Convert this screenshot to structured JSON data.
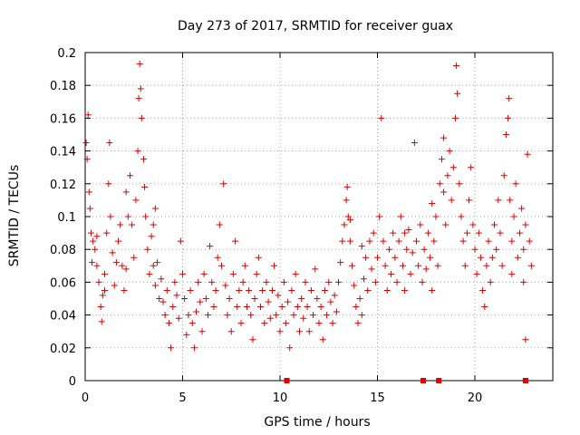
{
  "chart_data": {
    "type": "scatter",
    "title": "Day 273 of 2017, SRMTID for receiver guax",
    "xlabel": "GPS time / hours",
    "ylabel": "SRMTID / TECUs",
    "xlim": [
      0,
      24
    ],
    "ylim": [
      0,
      0.2
    ],
    "xticks": [
      0,
      5,
      10,
      15,
      20
    ],
    "xtick_labels": [
      "0",
      "5",
      "10",
      "15",
      "20"
    ],
    "yticks": [
      0,
      0.02,
      0.04,
      0.06,
      0.08,
      0.1,
      0.12,
      0.14,
      0.16,
      0.18,
      0.2
    ],
    "ytick_labels": [
      "0",
      "0.02",
      "0.04",
      "0.06",
      "0.08",
      "0.1",
      "0.12",
      "0.14",
      "0.16",
      "0.18",
      "0.2"
    ],
    "grid": true,
    "marker": "+",
    "color": "#dd0000",
    "series": [
      {
        "name": "SRMTID",
        "points": [
          [
            0.05,
            0.145
          ],
          [
            0.1,
            0.135
          ],
          [
            0.15,
            0.162
          ],
          [
            0.2,
            0.115
          ],
          [
            0.25,
            0.105
          ],
          [
            0.3,
            0.09
          ],
          [
            0.35,
            0.072
          ],
          [
            0.4,
            0.085
          ],
          [
            0.5,
            0.08
          ],
          [
            0.6,
            0.07
          ],
          [
            0.7,
            0.06
          ],
          [
            0.8,
            0.045
          ],
          [
            0.85,
            0.036
          ],
          [
            0.9,
            0.052
          ],
          [
            1.0,
            0.065
          ],
          [
            1.1,
            0.09
          ],
          [
            1.2,
            0.12
          ],
          [
            1.25,
            0.145
          ],
          [
            1.3,
            0.1
          ],
          [
            1.4,
            0.078
          ],
          [
            1.5,
            0.058
          ],
          [
            1.6,
            0.072
          ],
          [
            1.7,
            0.085
          ],
          [
            1.8,
            0.095
          ],
          [
            1.9,
            0.07
          ],
          [
            2.0,
            0.055
          ],
          [
            2.1,
            0.068
          ],
          [
            2.2,
            0.1
          ],
          [
            2.3,
            0.125
          ],
          [
            2.4,
            0.095
          ],
          [
            2.5,
            0.075
          ],
          [
            2.6,
            0.11
          ],
          [
            2.7,
            0.14
          ],
          [
            2.75,
            0.172
          ],
          [
            2.8,
            0.193
          ],
          [
            2.85,
            0.178
          ],
          [
            2.9,
            0.16
          ],
          [
            3.0,
            0.135
          ],
          [
            3.05,
            0.118
          ],
          [
            3.1,
            0.1
          ],
          [
            3.2,
            0.08
          ],
          [
            3.3,
            0.065
          ],
          [
            3.4,
            0.088
          ],
          [
            3.5,
            0.07
          ],
          [
            3.6,
            0.058
          ],
          [
            3.7,
            0.072
          ],
          [
            3.8,
            0.05
          ],
          [
            3.9,
            0.062
          ],
          [
            4.0,
            0.048
          ],
          [
            4.1,
            0.04
          ],
          [
            4.2,
            0.055
          ],
          [
            4.3,
            0.035
          ],
          [
            4.4,
            0.02
          ],
          [
            4.5,
            0.045
          ],
          [
            4.6,
            0.06
          ],
          [
            4.7,
            0.052
          ],
          [
            4.8,
            0.038
          ],
          [
            4.9,
            0.085
          ],
          [
            5.0,
            0.065
          ],
          [
            5.1,
            0.05
          ],
          [
            5.2,
            0.028
          ],
          [
            5.3,
            0.04
          ],
          [
            5.4,
            0.055
          ],
          [
            5.5,
            0.035
          ],
          [
            5.6,
            0.02
          ],
          [
            5.7,
            0.042
          ],
          [
            5.8,
            0.06
          ],
          [
            5.9,
            0.048
          ],
          [
            6.0,
            0.03
          ],
          [
            6.1,
            0.065
          ],
          [
            6.2,
            0.05
          ],
          [
            6.3,
            0.04
          ],
          [
            6.4,
            0.082
          ],
          [
            6.5,
            0.06
          ],
          [
            6.6,
            0.045
          ],
          [
            6.7,
            0.055
          ],
          [
            6.8,
            0.075
          ],
          [
            6.9,
            0.095
          ],
          [
            7.0,
            0.07
          ],
          [
            7.1,
            0.12
          ],
          [
            7.2,
            0.058
          ],
          [
            7.3,
            0.04
          ],
          [
            7.4,
            0.05
          ],
          [
            7.5,
            0.03
          ],
          [
            7.6,
            0.065
          ],
          [
            7.7,
            0.085
          ],
          [
            7.8,
            0.045
          ],
          [
            7.9,
            0.055
          ],
          [
            8.0,
            0.035
          ],
          [
            8.1,
            0.06
          ],
          [
            8.2,
            0.07
          ],
          [
            8.3,
            0.045
          ],
          [
            8.4,
            0.055
          ],
          [
            8.5,
            0.04
          ],
          [
            8.6,
            0.025
          ],
          [
            8.7,
            0.05
          ],
          [
            8.8,
            0.065
          ],
          [
            8.9,
            0.075
          ],
          [
            9.0,
            0.045
          ],
          [
            9.1,
            0.055
          ],
          [
            9.2,
            0.035
          ],
          [
            9.3,
            0.06
          ],
          [
            9.4,
            0.048
          ],
          [
            9.5,
            0.038
          ],
          [
            9.6,
            0.055
          ],
          [
            9.7,
            0.07
          ],
          [
            9.8,
            0.04
          ],
          [
            9.9,
            0.052
          ],
          [
            10.0,
            0.03
          ],
          [
            10.1,
            0.045
          ],
          [
            10.2,
            0.06
          ],
          [
            10.3,
            0.035
          ],
          [
            10.4,
            0.048
          ],
          [
            10.5,
            0.02
          ],
          [
            10.6,
            0.055
          ],
          [
            10.7,
            0.04
          ],
          [
            10.8,
            0.065
          ],
          [
            10.9,
            0.045
          ],
          [
            11.0,
            0.03
          ],
          [
            11.1,
            0.05
          ],
          [
            11.2,
            0.038
          ],
          [
            11.3,
            0.06
          ],
          [
            11.4,
            0.045
          ],
          [
            11.5,
            0.03
          ],
          [
            11.6,
            0.055
          ],
          [
            11.7,
            0.04
          ],
          [
            11.8,
            0.068
          ],
          [
            11.9,
            0.05
          ],
          [
            12.0,
            0.035
          ],
          [
            12.1,
            0.045
          ],
          [
            12.2,
            0.025
          ],
          [
            12.3,
            0.055
          ],
          [
            12.4,
            0.04
          ],
          [
            12.5,
            0.06
          ],
          [
            12.6,
            0.048
          ],
          [
            12.7,
            0.035
          ],
          [
            12.8,
            0.052
          ],
          [
            12.9,
            0.042
          ],
          [
            13.0,
            0.06
          ],
          [
            13.1,
            0.072
          ],
          [
            13.2,
            0.085
          ],
          [
            13.3,
            0.095
          ],
          [
            13.4,
            0.11
          ],
          [
            13.45,
            0.118
          ],
          [
            13.5,
            0.1
          ],
          [
            13.6,
            0.085
          ],
          [
            13.7,
            0.07
          ],
          [
            13.8,
            0.058
          ],
          [
            13.9,
            0.045
          ],
          [
            14.0,
            0.035
          ],
          [
            14.1,
            0.05
          ],
          [
            14.2,
            0.04
          ],
          [
            14.3,
            0.062
          ],
          [
            14.4,
            0.075
          ],
          [
            14.5,
            0.055
          ],
          [
            14.6,
            0.085
          ],
          [
            14.7,
            0.068
          ],
          [
            14.8,
            0.09
          ],
          [
            14.9,
            0.06
          ],
          [
            15.0,
            0.075
          ],
          [
            15.1,
            0.1
          ],
          [
            15.2,
            0.16
          ],
          [
            15.3,
            0.085
          ],
          [
            15.4,
            0.07
          ],
          [
            15.5,
            0.055
          ],
          [
            15.6,
            0.08
          ],
          [
            15.7,
            0.065
          ],
          [
            15.8,
            0.09
          ],
          [
            15.9,
            0.075
          ],
          [
            16.0,
            0.06
          ],
          [
            16.1,
            0.085
          ],
          [
            16.2,
            0.1
          ],
          [
            16.3,
            0.07
          ],
          [
            16.4,
            0.055
          ],
          [
            16.5,
            0.08
          ],
          [
            16.6,
            0.092
          ],
          [
            16.7,
            0.065
          ],
          [
            16.8,
            0.078
          ],
          [
            16.9,
            0.145
          ],
          [
            17.0,
            0.085
          ],
          [
            17.1,
            0.07
          ],
          [
            17.2,
            0.095
          ],
          [
            17.3,
            0.06
          ],
          [
            17.4,
            0.08
          ],
          [
            17.5,
            0.068
          ],
          [
            17.6,
            0.09
          ],
          [
            17.7,
            0.075
          ],
          [
            17.8,
            0.055
          ],
          [
            17.9,
            0.085
          ],
          [
            18.0,
            0.1
          ],
          [
            18.1,
            0.07
          ],
          [
            18.2,
            0.12
          ],
          [
            18.3,
            0.135
          ],
          [
            18.4,
            0.115
          ],
          [
            18.5,
            0.095
          ],
          [
            18.6,
            0.125
          ],
          [
            18.7,
            0.14
          ],
          [
            18.8,
            0.11
          ],
          [
            18.9,
            0.13
          ],
          [
            19.0,
            0.16
          ],
          [
            19.05,
            0.192
          ],
          [
            19.1,
            0.175
          ],
          [
            19.2,
            0.12
          ],
          [
            19.3,
            0.1
          ],
          [
            19.4,
            0.085
          ],
          [
            19.5,
            0.07
          ],
          [
            19.6,
            0.09
          ],
          [
            19.7,
            0.11
          ],
          [
            19.8,
            0.13
          ],
          [
            19.9,
            0.095
          ],
          [
            20.0,
            0.08
          ],
          [
            20.1,
            0.065
          ],
          [
            20.2,
            0.09
          ],
          [
            20.3,
            0.075
          ],
          [
            20.4,
            0.055
          ],
          [
            20.5,
            0.045
          ],
          [
            20.6,
            0.07
          ],
          [
            20.7,
            0.085
          ],
          [
            20.8,
            0.06
          ],
          [
            20.9,
            0.075
          ],
          [
            21.0,
            0.095
          ],
          [
            21.1,
            0.08
          ],
          [
            21.2,
            0.11
          ],
          [
            21.3,
            0.09
          ],
          [
            21.4,
            0.07
          ],
          [
            21.5,
            0.125
          ],
          [
            21.6,
            0.15
          ],
          [
            21.7,
            0.16
          ],
          [
            21.75,
            0.172
          ],
          [
            21.8,
            0.11
          ],
          [
            21.9,
            0.085
          ],
          [
            22.0,
            0.1
          ],
          [
            22.1,
            0.12
          ],
          [
            22.2,
            0.075
          ],
          [
            22.3,
            0.09
          ],
          [
            22.4,
            0.105
          ],
          [
            22.5,
            0.08
          ],
          [
            22.6,
            0.095
          ],
          [
            22.7,
            0.138
          ],
          [
            22.8,
            0.085
          ],
          [
            22.9,
            0.07
          ],
          [
            22.6,
            0.025
          ],
          [
            22.5,
            0.06
          ],
          [
            21.9,
            0.065
          ],
          [
            3.5,
            0.095
          ],
          [
            3.6,
            0.105
          ],
          [
            2.1,
            0.115
          ],
          [
            1.0,
            0.055
          ],
          [
            0.6,
            0.088
          ],
          [
            18.4,
            0.148
          ],
          [
            17.8,
            0.108
          ],
          [
            16.4,
            0.09
          ],
          [
            13.6,
            0.098
          ],
          [
            14.2,
            0.082
          ]
        ]
      }
    ],
    "axis_markers": [
      10.35,
      17.35,
      18.15,
      22.6
    ]
  }
}
